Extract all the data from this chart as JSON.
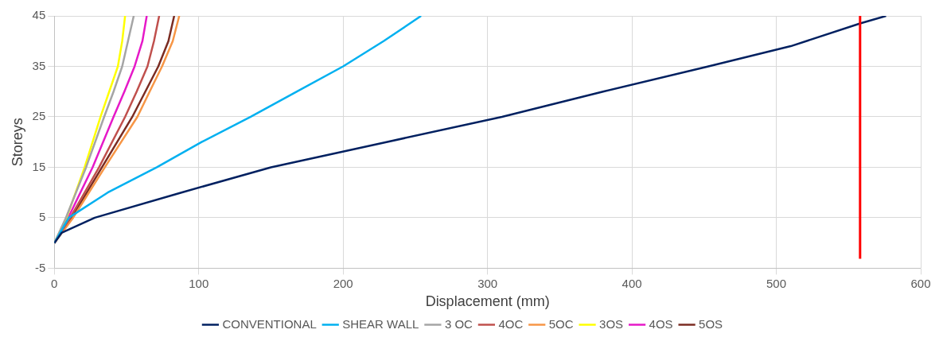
{
  "chart_data": {
    "type": "line",
    "xlabel": "Displacement (mm)",
    "ylabel": "Storeys",
    "xlim": [
      0,
      600
    ],
    "xticks": [
      0,
      100,
      200,
      300,
      400,
      500,
      600
    ],
    "ylim": [
      -5,
      45
    ],
    "yticks": [
      -5,
      5,
      15,
      25,
      35,
      45
    ],
    "grid": true,
    "legend": "bottom",
    "marker": "none",
    "line_style": "solid",
    "series": [
      {
        "name": "CONVENTIONAL",
        "color": "#002060",
        "x": [
          0,
          5,
          28,
          88,
          150,
          230,
          310,
          380,
          453,
          510,
          558,
          576
        ],
        "values": [
          0,
          2,
          5,
          10,
          15,
          20,
          25,
          30,
          35,
          39,
          43.5,
          45
        ]
      },
      {
        "name": "SHEAR WALL",
        "color": "#00b0f0",
        "x": [
          0,
          4,
          10,
          37,
          71,
          102,
          136,
          168,
          200,
          228,
          254
        ],
        "values": [
          0,
          2,
          5,
          10,
          15,
          20,
          25,
          30,
          35,
          40,
          45
        ]
      },
      {
        "name": "3 OC",
        "color": "#a5a5a5",
        "x": [
          0,
          8,
          22,
          34.5,
          41,
          47,
          51,
          55
        ],
        "values": [
          0,
          5,
          15,
          25,
          30,
          35,
          40,
          45
        ]
      },
      {
        "name": "4OC",
        "color": "#c0504d",
        "x": [
          0,
          11,
          31,
          49,
          57,
          64.5,
          69,
          72.6
        ],
        "values": [
          0,
          5,
          15,
          25,
          30,
          35,
          40,
          45
        ]
      },
      {
        "name": "5OC",
        "color": "#f79646",
        "x": [
          0,
          13,
          35,
          57.5,
          66,
          74.6,
          82,
          86.5
        ],
        "values": [
          0,
          5,
          15,
          25,
          30,
          35,
          40,
          45
        ]
      },
      {
        "name": "3OS",
        "color": "#ffff00",
        "x": [
          0,
          8.5,
          21,
          32,
          38,
          44,
          47,
          49
        ],
        "values": [
          0,
          5,
          15,
          25,
          30,
          35,
          40,
          45
        ]
      },
      {
        "name": "4OS",
        "color": "#e619c8",
        "x": [
          0,
          9.6,
          26.5,
          41,
          48.5,
          55.6,
          61,
          64
        ],
        "values": [
          0,
          5,
          15,
          25,
          30,
          35,
          40,
          45
        ]
      },
      {
        "name": "5OS",
        "color": "#7b2c22",
        "x": [
          0,
          12,
          33,
          54,
          63,
          72,
          79,
          83
        ],
        "values": [
          0,
          5,
          15,
          25,
          30,
          35,
          40,
          45
        ]
      }
    ],
    "ref_lines": [
      {
        "axis": "x",
        "value": 558,
        "color": "#ff0000"
      }
    ]
  }
}
